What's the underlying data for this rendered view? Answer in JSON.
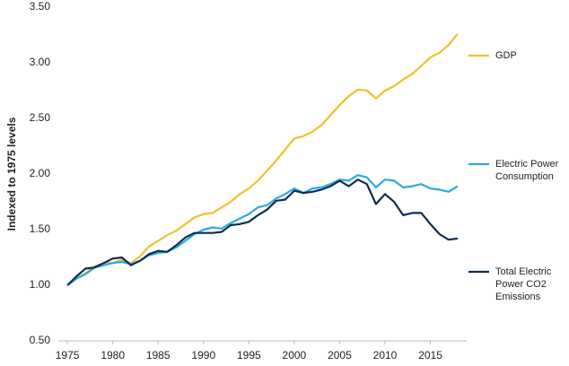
{
  "chart_data": {
    "type": "line",
    "y_label": "Indexed to 1975 levels",
    "x": [
      1975,
      1976,
      1977,
      1978,
      1979,
      1980,
      1981,
      1982,
      1983,
      1984,
      1985,
      1986,
      1987,
      1988,
      1989,
      1990,
      1991,
      1992,
      1993,
      1994,
      1995,
      1996,
      1997,
      1998,
      1999,
      2000,
      2001,
      2002,
      2003,
      2004,
      2005,
      2006,
      2007,
      2008,
      2009,
      2010,
      2011,
      2012,
      2013,
      2014,
      2015,
      2016,
      2017,
      2018
    ],
    "series": [
      {
        "name": "GDP",
        "color": "#f0c12a",
        "values": [
          1.0,
          1.06,
          1.11,
          1.17,
          1.2,
          1.2,
          1.23,
          1.2,
          1.26,
          1.35,
          1.4,
          1.45,
          1.49,
          1.55,
          1.61,
          1.64,
          1.65,
          1.7,
          1.75,
          1.82,
          1.87,
          1.94,
          2.03,
          2.12,
          2.22,
          2.32,
          2.34,
          2.38,
          2.44,
          2.53,
          2.62,
          2.7,
          2.76,
          2.75,
          2.68,
          2.75,
          2.79,
          2.85,
          2.9,
          2.97,
          3.05,
          3.09,
          3.16,
          3.26
        ]
      },
      {
        "name": "Electric Power Consumption",
        "color": "#29abe2",
        "values": [
          1.0,
          1.06,
          1.1,
          1.16,
          1.18,
          1.2,
          1.21,
          1.19,
          1.22,
          1.27,
          1.29,
          1.3,
          1.34,
          1.4,
          1.46,
          1.5,
          1.52,
          1.51,
          1.56,
          1.6,
          1.64,
          1.7,
          1.72,
          1.78,
          1.82,
          1.87,
          1.83,
          1.87,
          1.88,
          1.91,
          1.95,
          1.94,
          1.99,
          1.97,
          1.88,
          1.95,
          1.94,
          1.88,
          1.89,
          1.91,
          1.87,
          1.86,
          1.84,
          1.89
        ]
      },
      {
        "name": "Total Electric Power CO2 Emissions",
        "color": "#0d2c54",
        "values": [
          1.0,
          1.08,
          1.15,
          1.16,
          1.2,
          1.24,
          1.25,
          1.18,
          1.22,
          1.28,
          1.31,
          1.3,
          1.36,
          1.43,
          1.47,
          1.47,
          1.47,
          1.48,
          1.54,
          1.55,
          1.57,
          1.63,
          1.68,
          1.76,
          1.77,
          1.85,
          1.83,
          1.84,
          1.86,
          1.89,
          1.94,
          1.89,
          1.95,
          1.91,
          1.73,
          1.82,
          1.75,
          1.63,
          1.65,
          1.65,
          1.55,
          1.46,
          1.41,
          1.42
        ]
      }
    ],
    "xlim": [
      1974,
      2019
    ],
    "xticks": [
      1975,
      1980,
      1985,
      1990,
      1995,
      2000,
      2005,
      2010,
      2015
    ],
    "ylim": [
      0.5,
      3.5
    ],
    "yticks": [
      {
        "value": 0.5,
        "label": "0.50"
      },
      {
        "value": 1,
        "label": "1.00"
      },
      {
        "value": 1.5,
        "label": "1.50"
      },
      {
        "value": 2,
        "label": "2.00"
      },
      {
        "value": 2.5,
        "label": "2.50"
      },
      {
        "value": 3,
        "label": "3.00"
      },
      {
        "value": 3.5,
        "label": "3.50"
      }
    ],
    "grid": false,
    "legend": "right"
  }
}
